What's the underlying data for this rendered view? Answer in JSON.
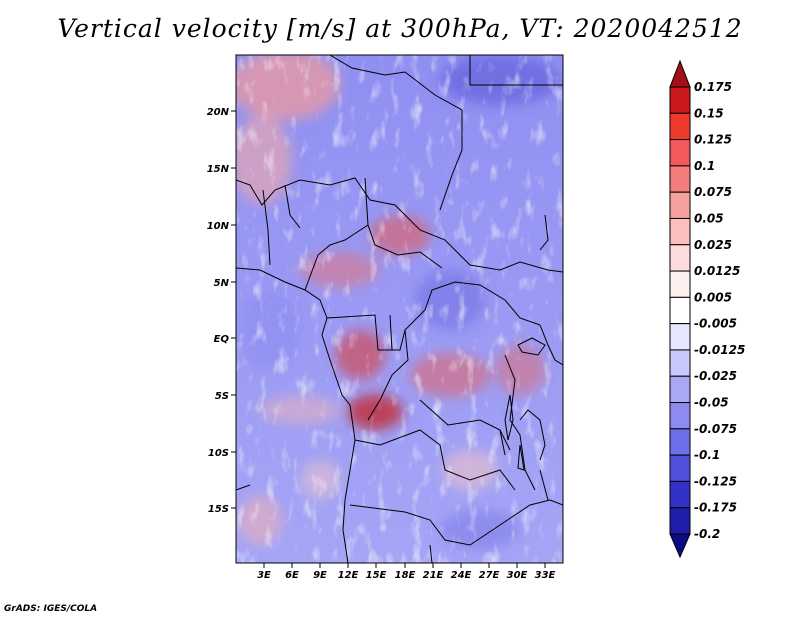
{
  "title": "Vertical velocity [m/s] at 300hPa, VT: 2020042512",
  "footer": "GrADS: IGES/COLA",
  "map": {
    "lat_labels": [
      "20N",
      "15N",
      "10N",
      "5N",
      "EQ",
      "5S",
      "10S",
      "15S"
    ],
    "lon_labels": [
      "3E",
      "6E",
      "9E",
      "12E",
      "15E",
      "18E",
      "21E",
      "24E",
      "27E",
      "30E",
      "33E"
    ]
  },
  "colorbar": {
    "levels": [
      "0.175",
      "0.15",
      "0.125",
      "0.1",
      "0.075",
      "0.05",
      "0.025",
      "0.0125",
      "0.005",
      "-0.005",
      "-0.0125",
      "-0.025",
      "-0.05",
      "-0.075",
      "-0.1",
      "-0.125",
      "-0.175",
      "-0.2"
    ],
    "colors": [
      "#a50f15",
      "#cb181d",
      "#ef3b2c",
      "#f2595a",
      "#f47c7c",
      "#f7a0a0",
      "#fac0c0",
      "#fcdcdc",
      "#fff0f0",
      "#ffffff",
      "#e6e6ff",
      "#c8c8fa",
      "#a8a8f5",
      "#8c8cf0",
      "#6e6ee8",
      "#5050dc",
      "#3232c8",
      "#1e1eaa",
      "#0a0a82"
    ]
  }
}
